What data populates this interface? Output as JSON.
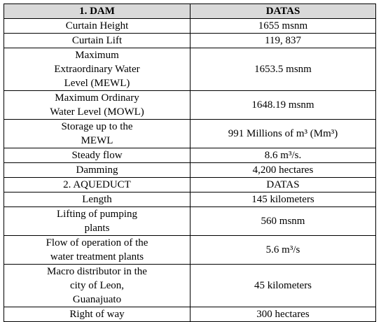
{
  "table": {
    "header": [
      "1. DAM",
      "DATAS"
    ],
    "rows": [
      [
        [
          "Curtain Height"
        ],
        [
          "1655 msnm"
        ]
      ],
      [
        [
          "Curtain Lift"
        ],
        [
          "119, 837"
        ]
      ],
      [
        [
          "Maximum",
          "Extraordinary Water",
          "Level (MEWL)"
        ],
        [
          "1653.5 msnm"
        ]
      ],
      [
        [
          "Maximum Ordinary",
          "Water Level (MOWL)"
        ],
        [
          "1648.19 msnm"
        ]
      ],
      [
        [
          "Storage up to the",
          "MEWL"
        ],
        [
          "991 Millions of m³ (Mm³)"
        ]
      ],
      [
        [
          "Steady flow"
        ],
        [
          "8.6 m³/s."
        ]
      ],
      [
        [
          "Damming"
        ],
        [
          "4,200 hectares"
        ]
      ],
      [
        [
          "2. AQUEDUCT"
        ],
        [
          "DATAS"
        ]
      ],
      [
        [
          "Length"
        ],
        [
          "145 kilometers"
        ]
      ],
      [
        [
          "Lifting of pumping",
          "plants"
        ],
        [
          "560 msnm"
        ]
      ],
      [
        [
          "Flow of operation of the",
          "water treatment plants"
        ],
        [
          "5.6 m³/s"
        ]
      ],
      [
        [
          "Macro distributor in the",
          "city of Leon,",
          "Guanajuato"
        ],
        [
          "45 kilometers"
        ]
      ],
      [
        [
          "Right of way"
        ],
        [
          "300 hectares"
        ]
      ]
    ]
  }
}
